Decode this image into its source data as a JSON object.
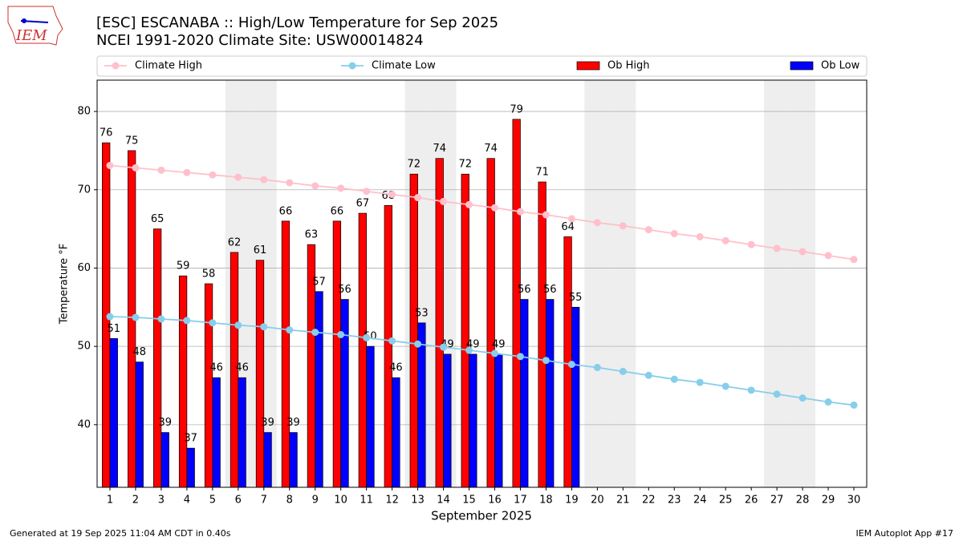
{
  "chart_data": {
    "type": "bar",
    "logo_text": "IEM",
    "title": "[ESC] ESCANABA :: High/Low Temperature for Sep 2025",
    "subtitle": "NCEI 1991-2020 Climate Site: USW00014824",
    "xlabel": "September 2025",
    "ylabel": "Temperature °F",
    "footer_left": "Generated at 19 Sep 2025 11:04 AM CDT in 0.40s",
    "footer_right": "IEM Autoplot App #17",
    "x": [
      1,
      2,
      3,
      4,
      5,
      6,
      7,
      8,
      9,
      10,
      11,
      12,
      13,
      14,
      15,
      16,
      17,
      18,
      19,
      20,
      21,
      22,
      23,
      24,
      25,
      26,
      27,
      28,
      29,
      30
    ],
    "xlim": [
      0.5,
      30.5
    ],
    "xticks": [
      1,
      2,
      3,
      4,
      5,
      6,
      7,
      8,
      9,
      10,
      11,
      12,
      13,
      14,
      15,
      16,
      17,
      18,
      19,
      20,
      21,
      22,
      23,
      24,
      25,
      26,
      27,
      28,
      29,
      30
    ],
    "ylim": [
      32,
      84
    ],
    "yticks": [
      40,
      50,
      60,
      70,
      80
    ],
    "grid": true,
    "legend": "top",
    "shaded_days": [
      6,
      7,
      13,
      14,
      20,
      21,
      27,
      28
    ],
    "shade_color": "#eeeeee",
    "series": [
      {
        "name": "Climate High",
        "type": "line",
        "color": "#ffc0cb",
        "values": [
          73.1,
          72.8,
          72.5,
          72.2,
          71.9,
          71.6,
          71.3,
          70.9,
          70.5,
          70.2,
          69.8,
          69.4,
          69.0,
          68.5,
          68.1,
          67.7,
          67.2,
          66.8,
          66.3,
          65.8,
          65.4,
          64.9,
          64.4,
          64.0,
          63.5,
          63.0,
          62.5,
          62.1,
          61.6,
          61.1
        ]
      },
      {
        "name": "Climate Low",
        "type": "line",
        "color": "#87ceeb",
        "values": [
          53.8,
          53.7,
          53.5,
          53.3,
          53.0,
          52.7,
          52.5,
          52.1,
          51.8,
          51.5,
          51.1,
          50.7,
          50.3,
          49.9,
          49.5,
          49.1,
          48.7,
          48.2,
          47.7,
          47.3,
          46.8,
          46.3,
          45.8,
          45.4,
          44.9,
          44.4,
          43.9,
          43.4,
          42.9,
          42.5
        ]
      },
      {
        "name": "Ob High",
        "type": "bar",
        "color": "#ff0000",
        "values": [
          76,
          75,
          65,
          59,
          58,
          62,
          61,
          66,
          63,
          66,
          67,
          68,
          72,
          74,
          72,
          74,
          79,
          71,
          64,
          null,
          null,
          null,
          null,
          null,
          null,
          null,
          null,
          null,
          null,
          null
        ]
      },
      {
        "name": "Ob Low",
        "type": "bar",
        "color": "#0000ff",
        "values": [
          51,
          48,
          39,
          37,
          46,
          46,
          39,
          39,
          57,
          56,
          50,
          46,
          53,
          49,
          49,
          49,
          56,
          56,
          55,
          null,
          null,
          null,
          null,
          null,
          null,
          null,
          null,
          null,
          null,
          null
        ]
      }
    ]
  }
}
